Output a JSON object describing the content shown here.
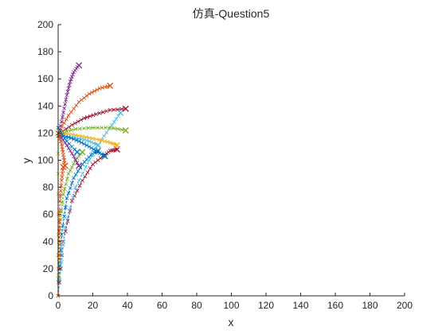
{
  "chart_data": {
    "type": "line",
    "title": "仿真-Question5",
    "xlabel": "x",
    "ylabel": "y",
    "xlim": [
      0,
      200
    ],
    "ylim": [
      0,
      200
    ],
    "xticks": [
      "0",
      "20",
      "40",
      "60",
      "80",
      "100",
      "120",
      "140",
      "160",
      "180",
      "200"
    ],
    "yticks": [
      "0",
      "20",
      "40",
      "60",
      "80",
      "100",
      "120",
      "140",
      "160",
      "180",
      "200"
    ],
    "grid": false,
    "legend": "none",
    "colors": [
      "#0072BD",
      "#D95319",
      "#EDB120",
      "#7E2F8E",
      "#77AC30",
      "#4DBEEE",
      "#A2142F"
    ],
    "series": [
      {
        "color": "#A2142F",
        "points": [
          [
            0,
            0
          ],
          [
            3,
            40
          ],
          [
            8,
            70
          ],
          [
            14,
            85
          ],
          [
            20,
            97
          ],
          [
            26,
            103
          ],
          [
            30,
            107
          ],
          [
            34,
            108
          ]
        ]
      },
      {
        "color": "#0072BD",
        "points": [
          [
            0,
            0
          ],
          [
            2,
            45
          ],
          [
            5,
            72
          ],
          [
            9,
            87
          ],
          [
            14,
            97
          ],
          [
            19,
            104
          ],
          [
            23,
            107
          ]
        ]
      },
      {
        "color": "#77AC30",
        "points": [
          [
            0,
            0
          ],
          [
            1,
            50
          ],
          [
            3,
            75
          ],
          [
            6,
            90
          ],
          [
            10,
            100
          ],
          [
            14,
            106
          ]
        ]
      },
      {
        "color": "#4DBEEE",
        "points": [
          [
            0,
            0
          ],
          [
            4,
            50
          ],
          [
            10,
            80
          ],
          [
            18,
            100
          ],
          [
            25,
            115
          ],
          [
            31,
            126
          ],
          [
            36,
            135
          ]
        ]
      },
      {
        "color": "#EDB120",
        "points": [
          [
            0,
            0
          ],
          [
            0,
            60
          ],
          [
            0,
            120
          ]
        ]
      },
      {
        "color": "#D95319",
        "points": [
          [
            0,
            0
          ],
          [
            0.5,
            40
          ],
          [
            1,
            70
          ],
          [
            2,
            85
          ],
          [
            3,
            95
          ]
        ]
      },
      {
        "color": "#7E2F8E",
        "points": [
          [
            1,
            122
          ],
          [
            3,
            135
          ],
          [
            5,
            148
          ],
          [
            7,
            158
          ],
          [
            9,
            165
          ],
          [
            12,
            170
          ]
        ]
      },
      {
        "color": "#D95319",
        "points": [
          [
            1,
            122
          ],
          [
            6,
            133
          ],
          [
            12,
            143
          ],
          [
            18,
            149
          ],
          [
            24,
            153
          ],
          [
            30,
            155
          ]
        ]
      },
      {
        "color": "#A2142F",
        "points": [
          [
            1,
            120
          ],
          [
            8,
            126
          ],
          [
            15,
            131
          ],
          [
            22,
            134
          ],
          [
            30,
            137
          ],
          [
            39,
            138
          ]
        ]
      },
      {
        "color": "#77AC30",
        "points": [
          [
            0,
            120
          ],
          [
            10,
            123
          ],
          [
            20,
            124
          ],
          [
            30,
            124
          ],
          [
            39,
            122
          ]
        ]
      },
      {
        "color": "#EDB120",
        "points": [
          [
            0,
            120
          ],
          [
            8,
            119
          ],
          [
            16,
            117
          ],
          [
            24,
            115
          ],
          [
            30,
            113
          ],
          [
            34,
            111
          ]
        ]
      },
      {
        "color": "#4DBEEE",
        "points": [
          [
            0,
            118
          ],
          [
            6,
            117
          ],
          [
            12,
            116
          ],
          [
            18,
            114
          ],
          [
            23,
            111
          ]
        ]
      },
      {
        "color": "#0072BD",
        "points": [
          [
            0,
            118
          ],
          [
            6,
            117
          ],
          [
            12,
            114
          ],
          [
            18,
            110
          ],
          [
            23,
            106
          ],
          [
            27,
            103
          ]
        ]
      },
      {
        "color": "#7E2F8E",
        "points": [
          [
            0,
            120
          ],
          [
            4,
            113
          ],
          [
            8,
            105
          ],
          [
            12,
            96
          ]
        ]
      },
      {
        "color": "#D95319",
        "points": [
          [
            0,
            120
          ],
          [
            2,
            112
          ],
          [
            3,
            104
          ],
          [
            4,
            96
          ]
        ]
      },
      {
        "color": "#0072BD",
        "points": [
          [
            0,
            124
          ],
          [
            5,
            114
          ],
          [
            11,
            106
          ]
        ]
      }
    ]
  }
}
